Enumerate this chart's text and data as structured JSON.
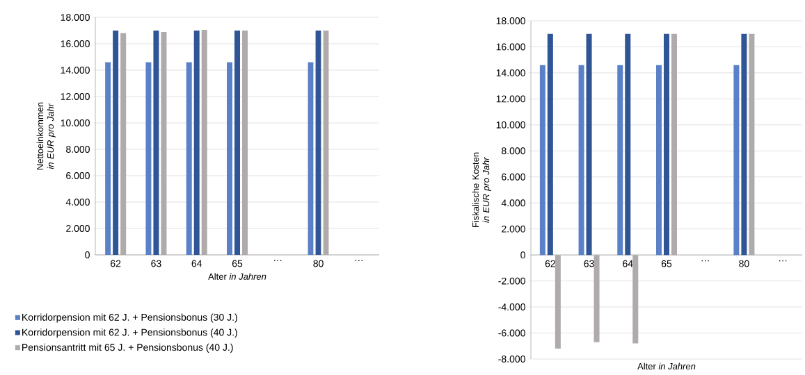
{
  "chart_data": [
    {
      "type": "bar",
      "categories": [
        "62",
        "63",
        "64",
        "65",
        "…",
        "80",
        "…"
      ],
      "xlabel": "Alter *in Jahren*",
      "ylabel": "Nettoeinkommen *in EUR pro Jahr*",
      "ylim": [
        0,
        18000
      ],
      "yticks": [
        0,
        {
          "value": 2000,
          "label": "2.000"
        },
        {
          "value": 4000,
          "label": "4.000"
        },
        {
          "value": 6000,
          "label": "6.000"
        },
        {
          "value": 8000,
          "label": "8.000"
        },
        {
          "value": 10000,
          "label": "10.000"
        },
        {
          "value": 12000,
          "label": "12.000"
        },
        {
          "value": 14000,
          "label": "14.000"
        },
        {
          "value": 16000,
          "label": "16.000"
        },
        {
          "value": 18000,
          "label": "18.000"
        }
      ],
      "grid": "y",
      "legend": "bottom",
      "series": [
        {
          "name": "Korridorpension mit 62 J. + Pensionsbonus (30 J.)",
          "color": "#5a81c8",
          "values": [
            14600,
            14600,
            14600,
            14600,
            null,
            14600,
            null
          ]
        },
        {
          "name": "Korridorpension mit 62 J. + Pensionsbonus (40 J.)",
          "color": "#2f5597",
          "values": [
            17000,
            17000,
            17000,
            17000,
            null,
            17000,
            null
          ]
        },
        {
          "name": "Pensionsantritt mit 65 J. + Pensionsbonus (40 J.)",
          "color": "#afabab",
          "values": [
            16800,
            16900,
            17050,
            17000,
            null,
            17000,
            null
          ]
        }
      ]
    },
    {
      "type": "bar",
      "categories": [
        "62",
        "63",
        "64",
        "65",
        "…",
        "80",
        "…"
      ],
      "xlabel": "Alter *in Jahren*",
      "ylabel": "Fiskalische Kosten *in EUR pro Jahr*",
      "ylim": [
        -8000,
        18000
      ],
      "yticks": [
        {
          "value": -8000,
          "label": "-8.000"
        },
        {
          "value": -6000,
          "label": "-6.000"
        },
        {
          "value": -4000,
          "label": "-4.000"
        },
        {
          "value": -2000,
          "label": "-2.000"
        },
        0,
        {
          "value": 2000,
          "label": "2.000"
        },
        {
          "value": 4000,
          "label": "4.000"
        },
        {
          "value": 6000,
          "label": "6.000"
        },
        {
          "value": 8000,
          "label": "8.000"
        },
        {
          "value": 10000,
          "label": "10.000"
        },
        {
          "value": 12000,
          "label": "12.000"
        },
        {
          "value": 14000,
          "label": "14.000"
        },
        {
          "value": 16000,
          "label": "16.000"
        },
        {
          "value": 18000,
          "label": "18.000"
        }
      ],
      "grid": "y",
      "series": [
        {
          "color": "#5a81c8",
          "values": [
            14600,
            14600,
            14600,
            14600,
            null,
            14600,
            null
          ]
        },
        {
          "color": "#2f5597",
          "values": [
            17000,
            17000,
            17000,
            17000,
            null,
            17000,
            null
          ]
        },
        {
          "color": "#afabab",
          "values": [
            -7200,
            -6700,
            -6800,
            17000,
            null,
            17000,
            null
          ]
        }
      ]
    }
  ]
}
